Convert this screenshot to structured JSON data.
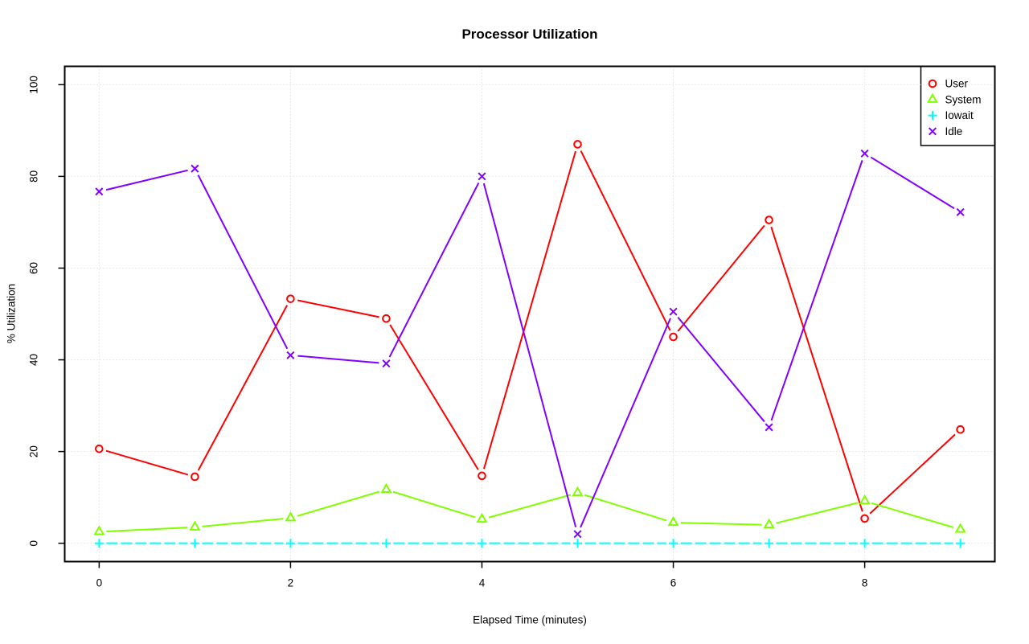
{
  "chart_data": {
    "type": "line",
    "title": "Processor Utilization",
    "xlabel": "Elapsed Time (minutes)",
    "ylabel": "% Utilization",
    "x": [
      0,
      1,
      2,
      3,
      4,
      5,
      6,
      7,
      8,
      9
    ],
    "series": [
      {
        "name": "User",
        "color": "#FF0000",
        "marker": "circle",
        "line": "solid",
        "values": [
          20.6,
          14.5,
          53.3,
          49,
          14.7,
          87,
          45,
          70.5,
          5.4,
          24.8
        ]
      },
      {
        "name": "System",
        "color": "#80FF00",
        "marker": "triangle",
        "line": "solid",
        "values": [
          2.5,
          3.5,
          5.5,
          11.7,
          5.2,
          11,
          4.5,
          4,
          9.2,
          3
        ]
      },
      {
        "name": "Iowait",
        "color": "#00FFFF",
        "marker": "plus",
        "line": "dashed",
        "values": [
          0,
          0,
          0,
          0,
          0,
          0,
          0,
          0,
          0,
          0
        ]
      },
      {
        "name": "Idle",
        "color": "#8000FF",
        "marker": "x",
        "line": "solid",
        "values": [
          76.7,
          81.7,
          41,
          39.2,
          80,
          2,
          50.5,
          25.3,
          85,
          72.2
        ]
      }
    ],
    "xticks": [
      0,
      2,
      4,
      6,
      8
    ],
    "xtick_labels": [
      "0",
      "2",
      "4",
      "6",
      "8"
    ],
    "yticks": [
      0,
      20,
      40,
      60,
      80,
      100
    ],
    "ytick_labels": [
      "0",
      "20",
      "40",
      "60",
      "80",
      "100"
    ],
    "xlim": [
      -0.36,
      9.36
    ],
    "ylim": [
      -4,
      104
    ],
    "grid": true,
    "grid_color": "#D3D3D3",
    "axis_color": "#000000",
    "background": "#FFFFFF",
    "legend": {
      "position": "top-right",
      "entries": [
        "User",
        "System",
        "Iowait",
        "Idle"
      ]
    }
  }
}
